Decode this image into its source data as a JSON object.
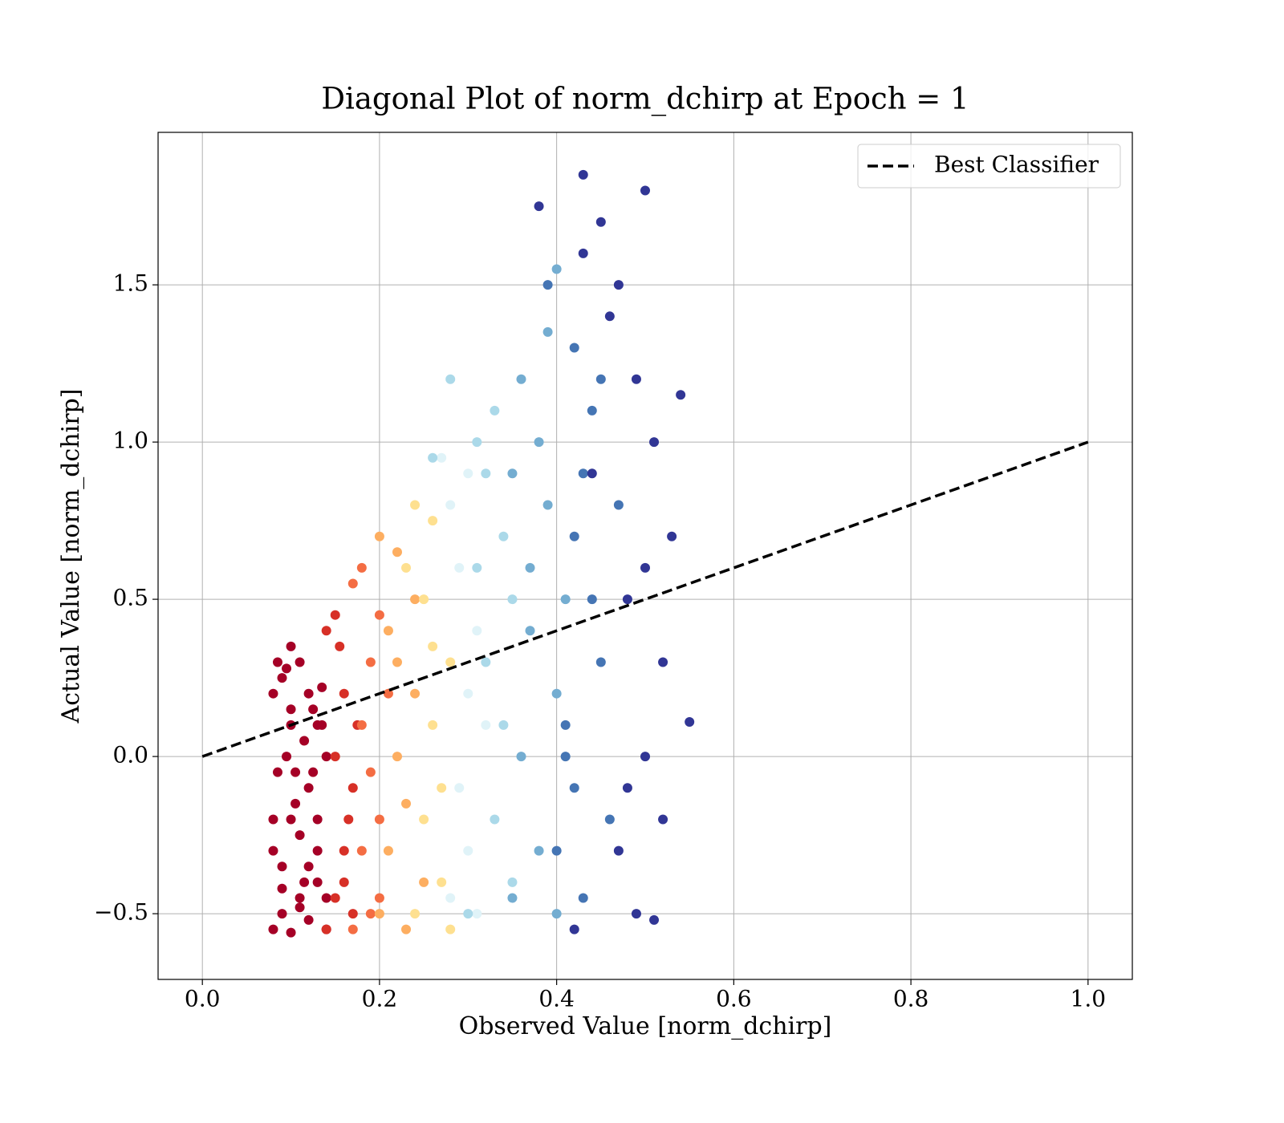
{
  "chart_data": {
    "type": "scatter",
    "title": "Diagonal Plot of norm_dchirp at Epoch = 1",
    "xlabel": "Observed Value [norm_dchirp]",
    "ylabel": "Actual Value [norm_dchirp]",
    "xlim": [
      -0.05,
      1.05
    ],
    "ylim": [
      -0.709,
      1.985
    ],
    "xticks": [
      {
        "value": 0,
        "label": "0.0"
      },
      0.2,
      0.4,
      0.6,
      0.8,
      {
        "value": 1,
        "label": "1.0"
      }
    ],
    "yticks": [
      {
        "value": -0.5,
        "label": "−0.5"
      },
      {
        "value": 0,
        "label": "0.0"
      },
      0.5,
      {
        "value": 1,
        "label": "1.0"
      },
      1.5
    ],
    "grid": true,
    "legend": "upper right",
    "series": [
      {
        "kind": "scatter",
        "color": "#a50026",
        "x": [
          0.08,
          0.09,
          0.1,
          0.11,
          0.12,
          0.13,
          0.14,
          0.08,
          0.09,
          0.1,
          0.11,
          0.12,
          0.13,
          0.085,
          0.095,
          0.105,
          0.115,
          0.125,
          0.135,
          0.08,
          0.09,
          0.1,
          0.11,
          0.12,
          0.13,
          0.14,
          0.085,
          0.1,
          0.115,
          0.13,
          0.09,
          0.11,
          0.125,
          0.1,
          0.12,
          0.08,
          0.14,
          0.095,
          0.105,
          0.135
        ],
        "y": [
          -0.55,
          -0.5,
          -0.56,
          -0.45,
          -0.52,
          -0.4,
          -0.55,
          -0.3,
          -0.35,
          -0.2,
          -0.25,
          -0.1,
          -0.3,
          -0.05,
          0.0,
          -0.15,
          0.05,
          -0.05,
          0.1,
          0.2,
          0.25,
          0.15,
          0.3,
          0.2,
          0.1,
          0.0,
          0.3,
          0.35,
          -0.4,
          -0.2,
          -0.42,
          -0.48,
          0.15,
          0.1,
          -0.35,
          -0.2,
          -0.45,
          0.28,
          -0.05,
          0.22
        ]
      },
      {
        "kind": "scatter",
        "color": "#d73027",
        "x": [
          0.14,
          0.15,
          0.16,
          0.17,
          0.15,
          0.16,
          0.17,
          0.14,
          0.155,
          0.165,
          0.175,
          0.15,
          0.16
        ],
        "y": [
          -0.55,
          -0.45,
          -0.3,
          -0.5,
          0.0,
          0.2,
          -0.1,
          0.4,
          0.35,
          -0.2,
          0.1,
          0.45,
          -0.4
        ]
      },
      {
        "kind": "scatter",
        "color": "#f46d43",
        "x": [
          0.17,
          0.18,
          0.19,
          0.2,
          0.18,
          0.19,
          0.2,
          0.17,
          0.19,
          0.21,
          0.18,
          0.2
        ],
        "y": [
          -0.55,
          -0.3,
          -0.5,
          -0.2,
          0.1,
          0.3,
          0.45,
          0.55,
          -0.05,
          0.2,
          0.6,
          -0.45
        ]
      },
      {
        "kind": "scatter",
        "color": "#fdae61",
        "x": [
          0.2,
          0.21,
          0.22,
          0.23,
          0.24,
          0.21,
          0.22,
          0.23,
          0.25,
          0.2,
          0.22,
          0.24
        ],
        "y": [
          -0.5,
          -0.3,
          0.0,
          -0.55,
          0.2,
          0.4,
          0.65,
          -0.15,
          -0.4,
          0.7,
          0.3,
          0.5
        ]
      },
      {
        "kind": "scatter",
        "color": "#fee090",
        "x": [
          0.24,
          0.25,
          0.26,
          0.27,
          0.28,
          0.25,
          0.26,
          0.27,
          0.24,
          0.28,
          0.26,
          0.23
        ],
        "y": [
          -0.5,
          -0.2,
          0.1,
          -0.4,
          0.3,
          0.5,
          0.75,
          -0.1,
          0.8,
          -0.55,
          0.35,
          0.6
        ]
      },
      {
        "kind": "scatter",
        "color": "#e0f3f8",
        "x": [
          0.28,
          0.29,
          0.3,
          0.31,
          0.29,
          0.3,
          0.31,
          0.28,
          0.3,
          0.27,
          0.32
        ],
        "y": [
          -0.45,
          -0.1,
          0.2,
          -0.5,
          0.6,
          0.9,
          0.4,
          0.8,
          -0.3,
          0.95,
          0.1
        ]
      },
      {
        "kind": "scatter",
        "color": "#abd9e9",
        "x": [
          0.3,
          0.31,
          0.32,
          0.33,
          0.34,
          0.35,
          0.32,
          0.33,
          0.34,
          0.31,
          0.35,
          0.28,
          0.26
        ],
        "y": [
          -0.5,
          1.0,
          0.3,
          -0.2,
          0.7,
          -0.4,
          0.9,
          1.1,
          0.1,
          0.6,
          0.5,
          1.2,
          0.95
        ]
      },
      {
        "kind": "scatter",
        "color": "#74add1",
        "x": [
          0.35,
          0.36,
          0.37,
          0.38,
          0.39,
          0.4,
          0.36,
          0.38,
          0.4,
          0.37,
          0.39,
          0.41,
          0.35,
          0.4
        ],
        "y": [
          -0.45,
          0.0,
          0.4,
          -0.3,
          0.8,
          0.2,
          1.2,
          1.0,
          -0.5,
          0.6,
          1.35,
          0.5,
          0.9,
          1.55
        ]
      },
      {
        "kind": "scatter",
        "color": "#4575b4",
        "x": [
          0.4,
          0.41,
          0.42,
          0.43,
          0.44,
          0.45,
          0.46,
          0.42,
          0.43,
          0.44,
          0.41,
          0.45,
          0.39,
          0.47,
          0.42
        ],
        "y": [
          -0.3,
          0.1,
          0.7,
          -0.45,
          1.1,
          0.3,
          -0.2,
          1.3,
          0.9,
          0.5,
          0.0,
          1.2,
          1.5,
          0.8,
          -0.1
        ]
      },
      {
        "kind": "scatter",
        "color": "#313695",
        "x": [
          0.43,
          0.45,
          0.47,
          0.48,
          0.49,
          0.5,
          0.51,
          0.52,
          0.53,
          0.55,
          0.47,
          0.49,
          0.5,
          0.51,
          0.46,
          0.48,
          0.43,
          0.42,
          0.44,
          0.38,
          0.5,
          0.52,
          0.54
        ],
        "y": [
          1.85,
          1.7,
          1.5,
          0.5,
          -0.5,
          1.8,
          1.0,
          0.3,
          0.7,
          0.11,
          -0.3,
          1.2,
          0.0,
          -0.52,
          1.4,
          -0.1,
          1.6,
          -0.55,
          0.9,
          1.75,
          0.6,
          -0.2,
          1.15
        ]
      },
      {
        "kind": "line",
        "name": "Best Classifier",
        "color": "#000000",
        "linestyle": "dashed",
        "x": [
          0,
          1
        ],
        "y": [
          0,
          1
        ]
      }
    ]
  }
}
